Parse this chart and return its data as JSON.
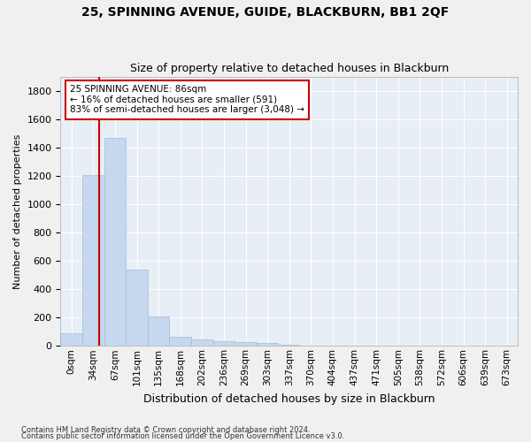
{
  "title": "25, SPINNING AVENUE, GUIDE, BLACKBURN, BB1 2QF",
  "subtitle": "Size of property relative to detached houses in Blackburn",
  "xlabel": "Distribution of detached houses by size in Blackburn",
  "ylabel": "Number of detached properties",
  "bar_color": "#c5d8ed",
  "bar_edge_color": "#a0bdd8",
  "background_color": "#e8eef5",
  "grid_color": "#ffffff",
  "categories": [
    "0sqm",
    "34sqm",
    "67sqm",
    "101sqm",
    "135sqm",
    "168sqm",
    "202sqm",
    "236sqm",
    "269sqm",
    "303sqm",
    "337sqm",
    "370sqm",
    "404sqm",
    "437sqm",
    "471sqm",
    "505sqm",
    "538sqm",
    "572sqm",
    "606sqm",
    "639sqm",
    "673sqm"
  ],
  "values": [
    90,
    1210,
    1470,
    540,
    205,
    65,
    45,
    35,
    25,
    18,
    10,
    0,
    0,
    0,
    0,
    0,
    0,
    0,
    0,
    0,
    0
  ],
  "ylim": [
    0,
    1900
  ],
  "yticks": [
    0,
    200,
    400,
    600,
    800,
    1000,
    1200,
    1400,
    1600,
    1800
  ],
  "property_line_x": 1.78,
  "annotation_text": "25 SPINNING AVENUE: 86sqm\n← 16% of detached houses are smaller (591)\n83% of semi-detached houses are larger (3,048) →",
  "annotation_box_color": "#ffffff",
  "annotation_box_edge": "#cc0000",
  "footnote1": "Contains HM Land Registry data © Crown copyright and database right 2024.",
  "footnote2": "Contains public sector information licensed under the Open Government Licence v3.0."
}
